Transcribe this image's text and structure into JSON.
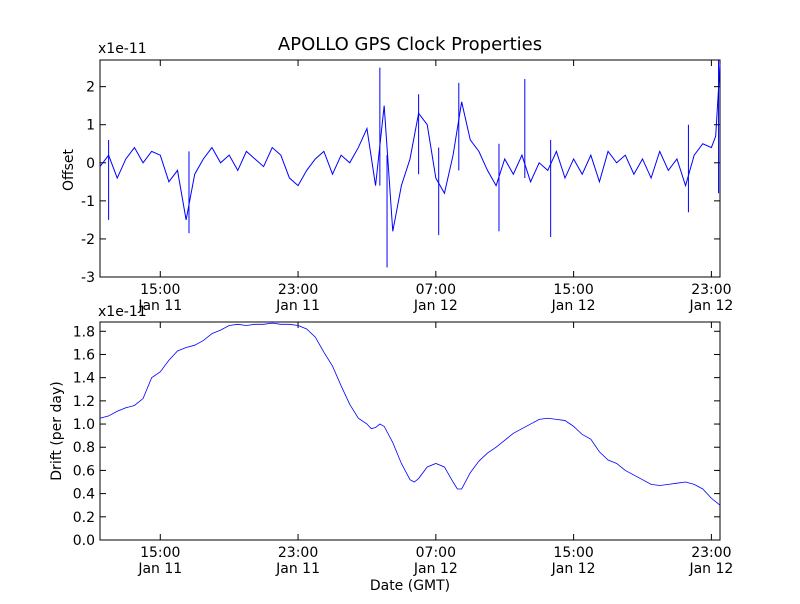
{
  "figure": {
    "title": "APOLLO GPS Clock Properties"
  },
  "chart_data": [
    {
      "type": "line",
      "ylabel": "Offset",
      "y_multiplier": "x1e-11",
      "xlabel": "",
      "xlim": [
        "2013-01-11 11:30",
        "2013-01-12 23:30"
      ],
      "ylim": [
        -3,
        2.7
      ],
      "yticks": [
        -3,
        -2,
        -1,
        0,
        1,
        2
      ],
      "ytick_labels": [
        "-3",
        "-2",
        "-1",
        "0",
        "1",
        "2"
      ],
      "xticks": [
        {
          "time": "2013-01-11 15:00",
          "label_time": "15:00",
          "label_date": "Jan 11"
        },
        {
          "time": "2013-01-11 23:00",
          "label_time": "23:00",
          "label_date": "Jan 11"
        },
        {
          "time": "2013-01-12 07:00",
          "label_time": "07:00",
          "label_date": "Jan 12"
        },
        {
          "time": "2013-01-12 15:00",
          "label_time": "15:00",
          "label_date": "Jan 12"
        },
        {
          "time": "2013-01-12 23:00",
          "label_time": "23:00",
          "label_date": "Jan 12"
        }
      ],
      "grid": false,
      "legend": "none",
      "series": [
        {
          "color": "#0000ff",
          "points": [
            [
              "2013-01-11 11:30",
              -0.1
            ],
            [
              "2013-01-11 12:00",
              0.2
            ],
            [
              "2013-01-11 12:30",
              -0.4
            ],
            [
              "2013-01-11 13:00",
              0.1
            ],
            [
              "2013-01-11 13:30",
              0.4
            ],
            [
              "2013-01-11 14:00",
              0.0
            ],
            [
              "2013-01-11 14:30",
              0.3
            ],
            [
              "2013-01-11 15:00",
              0.2
            ],
            [
              "2013-01-11 15:30",
              -0.5
            ],
            [
              "2013-01-11 16:00",
              -0.2
            ],
            [
              "2013-01-11 16:30",
              -1.5
            ],
            [
              "2013-01-11 17:00",
              -0.3
            ],
            [
              "2013-01-11 17:30",
              0.1
            ],
            [
              "2013-01-11 18:00",
              0.4
            ],
            [
              "2013-01-11 18:30",
              0.0
            ],
            [
              "2013-01-11 19:00",
              0.2
            ],
            [
              "2013-01-11 19:30",
              -0.2
            ],
            [
              "2013-01-11 20:00",
              0.3
            ],
            [
              "2013-01-11 20:30",
              0.1
            ],
            [
              "2013-01-11 21:00",
              -0.1
            ],
            [
              "2013-01-11 21:30",
              0.4
            ],
            [
              "2013-01-11 22:00",
              0.2
            ],
            [
              "2013-01-11 22:30",
              -0.4
            ],
            [
              "2013-01-11 23:00",
              -0.6
            ],
            [
              "2013-01-11 23:30",
              -0.2
            ],
            [
              "2013-01-12 00:00",
              0.1
            ],
            [
              "2013-01-12 00:30",
              0.3
            ],
            [
              "2013-01-12 01:00",
              -0.3
            ],
            [
              "2013-01-12 01:30",
              0.2
            ],
            [
              "2013-01-12 02:00",
              0.0
            ],
            [
              "2013-01-12 02:30",
              0.4
            ],
            [
              "2013-01-12 03:00",
              0.9
            ],
            [
              "2013-01-12 03:30",
              -0.6
            ],
            [
              "2013-01-12 04:00",
              1.5
            ],
            [
              "2013-01-12 04:30",
              -1.8
            ],
            [
              "2013-01-12 05:00",
              -0.6
            ],
            [
              "2013-01-12 05:30",
              0.1
            ],
            [
              "2013-01-12 06:00",
              1.3
            ],
            [
              "2013-01-12 06:30",
              1.0
            ],
            [
              "2013-01-12 07:00",
              -0.4
            ],
            [
              "2013-01-12 07:30",
              -0.8
            ],
            [
              "2013-01-12 08:00",
              0.2
            ],
            [
              "2013-01-12 08:30",
              1.6
            ],
            [
              "2013-01-12 09:00",
              0.6
            ],
            [
              "2013-01-12 09:30",
              0.3
            ],
            [
              "2013-01-12 10:00",
              -0.2
            ],
            [
              "2013-01-12 10:30",
              -0.6
            ],
            [
              "2013-01-12 11:00",
              0.1
            ],
            [
              "2013-01-12 11:30",
              -0.3
            ],
            [
              "2013-01-12 12:00",
              0.2
            ],
            [
              "2013-01-12 12:30",
              -0.5
            ],
            [
              "2013-01-12 13:00",
              0.0
            ],
            [
              "2013-01-12 13:30",
              -0.2
            ],
            [
              "2013-01-12 14:00",
              0.3
            ],
            [
              "2013-01-12 14:30",
              -0.4
            ],
            [
              "2013-01-12 15:00",
              0.1
            ],
            [
              "2013-01-12 15:30",
              -0.3
            ],
            [
              "2013-01-12 16:00",
              0.2
            ],
            [
              "2013-01-12 16:30",
              -0.5
            ],
            [
              "2013-01-12 17:00",
              0.3
            ],
            [
              "2013-01-12 17:30",
              0.0
            ],
            [
              "2013-01-12 18:00",
              0.2
            ],
            [
              "2013-01-12 18:30",
              -0.3
            ],
            [
              "2013-01-12 19:00",
              0.1
            ],
            [
              "2013-01-12 19:30",
              -0.4
            ],
            [
              "2013-01-12 20:00",
              0.3
            ],
            [
              "2013-01-12 20:30",
              -0.2
            ],
            [
              "2013-01-12 21:00",
              0.1
            ],
            [
              "2013-01-12 21:30",
              -0.6
            ],
            [
              "2013-01-12 22:00",
              0.2
            ],
            [
              "2013-01-12 22:30",
              0.5
            ],
            [
              "2013-01-12 23:00",
              0.4
            ],
            [
              "2013-01-12 23:15",
              0.7
            ],
            [
              "2013-01-12 23:30",
              2.6
            ]
          ]
        }
      ],
      "spikes": [
        {
          "time": "2013-01-11 12:00",
          "low": -1.5,
          "high": 0.6
        },
        {
          "time": "2013-01-11 16:40",
          "low": -1.85,
          "high": 0.3
        },
        {
          "time": "2013-01-12 03:45",
          "low": -0.6,
          "high": 2.5
        },
        {
          "time": "2013-01-12 04:10",
          "low": -2.75,
          "high": 0.2
        },
        {
          "time": "2013-01-12 06:00",
          "low": -0.3,
          "high": 1.8
        },
        {
          "time": "2013-01-12 07:10",
          "low": -1.9,
          "high": 0.4
        },
        {
          "time": "2013-01-12 08:20",
          "low": -0.2,
          "high": 2.1
        },
        {
          "time": "2013-01-12 10:40",
          "low": -1.8,
          "high": 0.5
        },
        {
          "time": "2013-01-12 12:10",
          "low": -0.4,
          "high": 2.2
        },
        {
          "time": "2013-01-12 13:40",
          "low": -1.95,
          "high": 0.6
        },
        {
          "time": "2013-01-12 21:40",
          "low": -1.3,
          "high": 1.0
        },
        {
          "time": "2013-01-12 23:25",
          "low": -0.8,
          "high": 2.7
        }
      ]
    },
    {
      "type": "line",
      "ylabel": "Drift (per day)",
      "y_multiplier": "x1e-11",
      "xlabel": "Date (GMT)",
      "xlim": [
        "2013-01-11 11:30",
        "2013-01-12 23:30"
      ],
      "ylim": [
        0.0,
        1.88
      ],
      "yticks": [
        0.0,
        0.2,
        0.4,
        0.6,
        0.8,
        1.0,
        1.2,
        1.4,
        1.6,
        1.8
      ],
      "ytick_labels": [
        "0.0",
        "0.2",
        "0.4",
        "0.6",
        "0.8",
        "1.0",
        "1.2",
        "1.4",
        "1.6",
        "1.8"
      ],
      "xticks": [
        {
          "time": "2013-01-11 15:00",
          "label_time": "15:00",
          "label_date": "Jan 11"
        },
        {
          "time": "2013-01-11 23:00",
          "label_time": "23:00",
          "label_date": "Jan 11"
        },
        {
          "time": "2013-01-12 07:00",
          "label_time": "07:00",
          "label_date": "Jan 12"
        },
        {
          "time": "2013-01-12 15:00",
          "label_time": "15:00",
          "label_date": "Jan 12"
        },
        {
          "time": "2013-01-12 23:00",
          "label_time": "23:00",
          "label_date": "Jan 12"
        }
      ],
      "grid": false,
      "legend": "none",
      "series": [
        {
          "color": "#0000ff",
          "points": [
            [
              "2013-01-11 11:30",
              1.05
            ],
            [
              "2013-01-11 12:00",
              1.07
            ],
            [
              "2013-01-11 12:30",
              1.11
            ],
            [
              "2013-01-11 13:00",
              1.14
            ],
            [
              "2013-01-11 13:30",
              1.16
            ],
            [
              "2013-01-11 14:00",
              1.22
            ],
            [
              "2013-01-11 14:30",
              1.4
            ],
            [
              "2013-01-11 15:00",
              1.45
            ],
            [
              "2013-01-11 15:30",
              1.55
            ],
            [
              "2013-01-11 16:00",
              1.63
            ],
            [
              "2013-01-11 16:30",
              1.66
            ],
            [
              "2013-01-11 17:00",
              1.68
            ],
            [
              "2013-01-11 17:30",
              1.72
            ],
            [
              "2013-01-11 18:00",
              1.78
            ],
            [
              "2013-01-11 18:30",
              1.81
            ],
            [
              "2013-01-11 19:00",
              1.85
            ],
            [
              "2013-01-11 19:30",
              1.86
            ],
            [
              "2013-01-11 20:00",
              1.85
            ],
            [
              "2013-01-11 20:30",
              1.86
            ],
            [
              "2013-01-11 21:00",
              1.86
            ],
            [
              "2013-01-11 21:30",
              1.87
            ],
            [
              "2013-01-11 22:00",
              1.86
            ],
            [
              "2013-01-11 22:30",
              1.86
            ],
            [
              "2013-01-11 23:00",
              1.85
            ],
            [
              "2013-01-11 23:30",
              1.82
            ],
            [
              "2013-01-12 00:00",
              1.75
            ],
            [
              "2013-01-12 00:30",
              1.62
            ],
            [
              "2013-01-12 01:00",
              1.5
            ],
            [
              "2013-01-12 01:30",
              1.33
            ],
            [
              "2013-01-12 02:00",
              1.17
            ],
            [
              "2013-01-12 02:30",
              1.05
            ],
            [
              "2013-01-12 03:00",
              1.0
            ],
            [
              "2013-01-12 03:15",
              0.96
            ],
            [
              "2013-01-12 03:30",
              0.97
            ],
            [
              "2013-01-12 03:45",
              1.0
            ],
            [
              "2013-01-12 04:00",
              0.98
            ],
            [
              "2013-01-12 04:30",
              0.84
            ],
            [
              "2013-01-12 05:00",
              0.66
            ],
            [
              "2013-01-12 05:30",
              0.52
            ],
            [
              "2013-01-12 05:45",
              0.5
            ],
            [
              "2013-01-12 06:00",
              0.53
            ],
            [
              "2013-01-12 06:30",
              0.63
            ],
            [
              "2013-01-12 07:00",
              0.66
            ],
            [
              "2013-01-12 07:30",
              0.63
            ],
            [
              "2013-01-12 08:00",
              0.5
            ],
            [
              "2013-01-12 08:15",
              0.44
            ],
            [
              "2013-01-12 08:30",
              0.44
            ],
            [
              "2013-01-12 09:00",
              0.58
            ],
            [
              "2013-01-12 09:30",
              0.68
            ],
            [
              "2013-01-12 10:00",
              0.75
            ],
            [
              "2013-01-12 10:30",
              0.8
            ],
            [
              "2013-01-12 11:00",
              0.86
            ],
            [
              "2013-01-12 11:30",
              0.92
            ],
            [
              "2013-01-12 12:00",
              0.96
            ],
            [
              "2013-01-12 12:30",
              1.0
            ],
            [
              "2013-01-12 13:00",
              1.04
            ],
            [
              "2013-01-12 13:30",
              1.05
            ],
            [
              "2013-01-12 14:00",
              1.04
            ],
            [
              "2013-01-12 14:30",
              1.03
            ],
            [
              "2013-01-12 15:00",
              0.98
            ],
            [
              "2013-01-12 15:30",
              0.91
            ],
            [
              "2013-01-12 16:00",
              0.87
            ],
            [
              "2013-01-12 16:30",
              0.76
            ],
            [
              "2013-01-12 17:00",
              0.69
            ],
            [
              "2013-01-12 17:30",
              0.66
            ],
            [
              "2013-01-12 18:00",
              0.6
            ],
            [
              "2013-01-12 18:30",
              0.56
            ],
            [
              "2013-01-12 19:00",
              0.52
            ],
            [
              "2013-01-12 19:30",
              0.48
            ],
            [
              "2013-01-12 20:00",
              0.47
            ],
            [
              "2013-01-12 20:30",
              0.48
            ],
            [
              "2013-01-12 21:00",
              0.49
            ],
            [
              "2013-01-12 21:30",
              0.5
            ],
            [
              "2013-01-12 22:00",
              0.48
            ],
            [
              "2013-01-12 22:30",
              0.44
            ],
            [
              "2013-01-12 23:00",
              0.36
            ],
            [
              "2013-01-12 23:30",
              0.3
            ]
          ]
        }
      ]
    }
  ]
}
